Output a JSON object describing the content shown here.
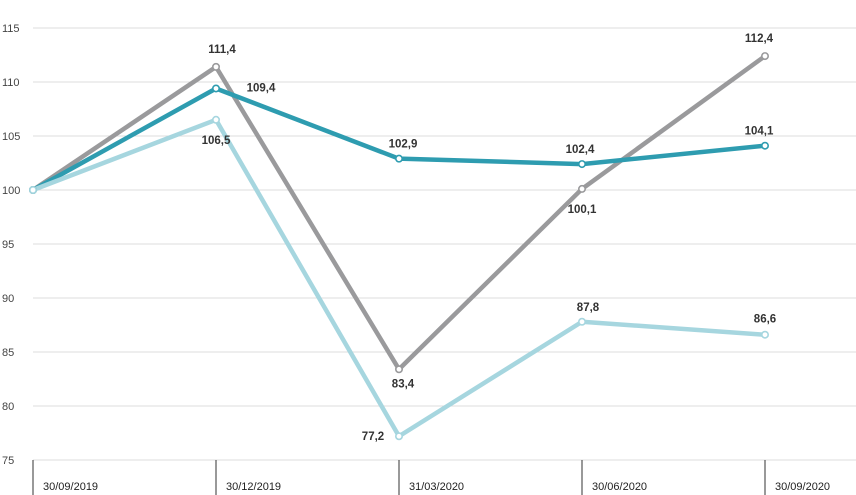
{
  "chart_data": {
    "type": "line",
    "title": "",
    "xlabel": "",
    "ylabel": "",
    "categories": [
      "30/09/2019",
      "30/12/2019",
      "31/03/2020",
      "30/06/2020",
      "30/09/2020"
    ],
    "ylim": [
      75,
      115
    ],
    "yticks": [
      75,
      80,
      85,
      90,
      95,
      100,
      105,
      110,
      115
    ],
    "grid": true,
    "series": [
      {
        "name": "series-gray",
        "color": "#9a9a9c",
        "values": [
          100,
          111.4,
          83.4,
          100.1,
          112.4
        ],
        "labels": [
          "",
          "111,4",
          "83,4",
          "100,1",
          "112,4"
        ]
      },
      {
        "name": "series-teal",
        "color": "#2e9cb0",
        "values": [
          100,
          109.4,
          102.9,
          102.4,
          104.1
        ],
        "labels": [
          "",
          "109,4",
          "102,9",
          "102,4",
          "104,1"
        ]
      },
      {
        "name": "series-light-blue",
        "color": "#a6d6df",
        "values": [
          100,
          106.5,
          77.2,
          87.8,
          86.6
        ],
        "labels": [
          "",
          "106,5",
          "77,2",
          "87,8",
          "86,6"
        ]
      }
    ]
  }
}
